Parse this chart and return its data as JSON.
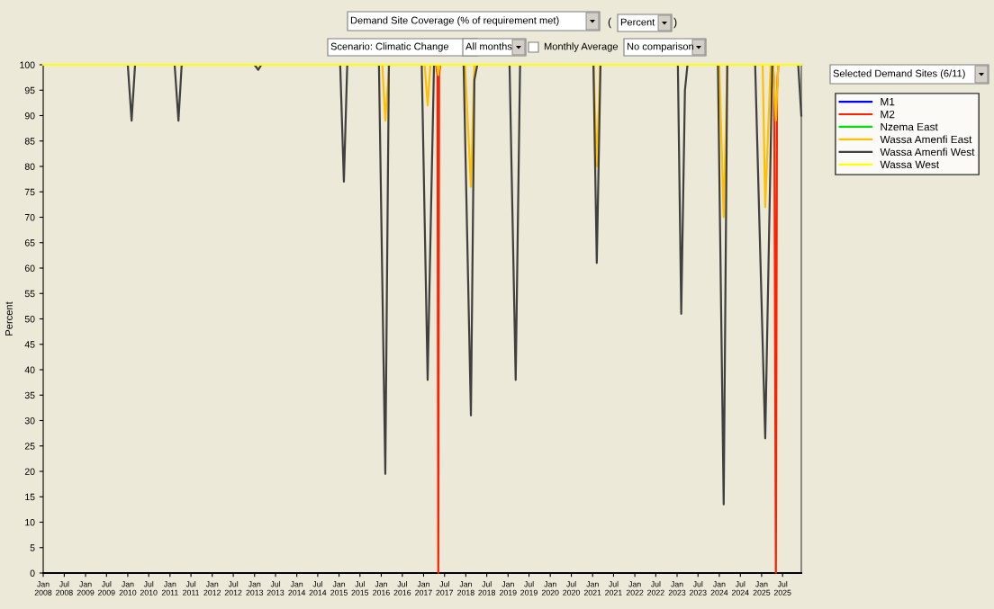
{
  "chart_data": {
    "type": "line",
    "title": "Demand Site Coverage (% of requirement met)",
    "ylabel": "Percent",
    "annotations": [
      "Percent",
      "Scenario: Climatic Change",
      "All months",
      "Monthly Average",
      "No comparison",
      "Selected Demand Sites (6/11)",
      "(",
      ")"
    ],
    "xlim": [
      "2008-01-01",
      "2025-12-10"
    ],
    "ylim": [
      0,
      100
    ],
    "yticks": [
      0,
      5,
      10,
      15,
      20,
      25,
      30,
      35,
      40,
      45,
      50,
      55,
      60,
      65,
      70,
      75,
      80,
      85,
      90,
      95,
      100
    ],
    "xticks": [
      {
        "value": "2008-01-01",
        "label": "Jan\n2008"
      },
      {
        "value": "2008-07-01",
        "label": "Jul\n2008"
      },
      {
        "value": "2009-01-01",
        "label": "Jan\n2009"
      },
      {
        "value": "2009-07-01",
        "label": "Jul\n2009"
      },
      {
        "value": "2010-01-01",
        "label": "Jan\n2010"
      },
      {
        "value": "2010-07-01",
        "label": "Jul\n2010"
      },
      {
        "value": "2011-01-01",
        "label": "Jan\n2011"
      },
      {
        "value": "2011-07-01",
        "label": "Jul\n2011"
      },
      {
        "value": "2012-01-01",
        "label": "Jan\n2012"
      },
      {
        "value": "2012-07-01",
        "label": "Jul\n2012"
      },
      {
        "value": "2013-01-01",
        "label": "Jan\n2013"
      },
      {
        "value": "2013-07-01",
        "label": "Jul\n2013"
      },
      {
        "value": "2014-01-01",
        "label": "Jan\n2014"
      },
      {
        "value": "2014-07-01",
        "label": "Jul\n2014"
      },
      {
        "value": "2015-01-01",
        "label": "Jan\n2015"
      },
      {
        "value": "2015-07-01",
        "label": "Jul\n2015"
      },
      {
        "value": "2016-01-01",
        "label": "Jan\n2016"
      },
      {
        "value": "2016-07-01",
        "label": "Jul\n2016"
      },
      {
        "value": "2017-01-01",
        "label": "Jan\n2017"
      },
      {
        "value": "2017-07-01",
        "label": "Jul\n2017"
      },
      {
        "value": "2018-01-01",
        "label": "Jan\n2018"
      },
      {
        "value": "2018-07-01",
        "label": "Jul\n2018"
      },
      {
        "value": "2019-01-01",
        "label": "Jan\n2019"
      },
      {
        "value": "2019-07-01",
        "label": "Jul\n2019"
      },
      {
        "value": "2020-01-01",
        "label": "Jan\n2020"
      },
      {
        "value": "2020-07-01",
        "label": "Jul\n2020"
      },
      {
        "value": "2021-01-01",
        "label": "Jan\n2021"
      },
      {
        "value": "2021-07-01",
        "label": "Jul\n2021"
      },
      {
        "value": "2022-01-01",
        "label": "Jan\n2022"
      },
      {
        "value": "2022-07-01",
        "label": "Jul\n2022"
      },
      {
        "value": "2023-01-01",
        "label": "Jan\n2023"
      },
      {
        "value": "2023-07-01",
        "label": "Jul\n2023"
      },
      {
        "value": "2024-01-01",
        "label": "Jan\n2024"
      },
      {
        "value": "2024-07-01",
        "label": "Jul\n2024"
      },
      {
        "value": "2025-01-01",
        "label": "Jan\n2025"
      },
      {
        "value": "2025-07-01",
        "label": "Jul\n2025"
      }
    ],
    "grid": false,
    "legend": "top right",
    "marker": "none",
    "line_style": "solid",
    "series": [
      {
        "name": "M1",
        "color": "#0000ff"
      },
      {
        "name": "M2",
        "color": "#ff2000",
        "x": [
          "2008-01-01",
          "2017-04-20",
          "2017-05-01",
          "2017-05-08",
          "2017-05-15",
          "2017-05-25",
          "2025-04-10",
          "2025-04-20",
          "2025-05-04",
          "2025-05-14",
          "2025-05-25",
          "2025-12-10"
        ],
        "values": [
          100,
          100,
          98,
          0,
          98,
          100,
          100,
          95,
          0,
          95,
          100,
          100
        ]
      },
      {
        "name": "Nzema East",
        "color": "#00e000"
      },
      {
        "name": "Wassa Amenfi East",
        "color": "#ffc000",
        "x": [
          "2008-01-01",
          "2016-01-10",
          "2016-02-05",
          "2016-03-10",
          "2017-01-10",
          "2017-02-05",
          "2017-03-01",
          "2017-04-25",
          "2017-05-08",
          "2017-05-20",
          "2017-12-25",
          "2018-02-14",
          "2018-03-16",
          "2021-01-10",
          "2021-02-06",
          "2021-03-08",
          "2024-01-01",
          "2024-02-08",
          "2024-03-10",
          "2025-01-10",
          "2025-02-01",
          "2025-03-20",
          "2025-04-10",
          "2025-05-04",
          "2025-05-25",
          "2025-12-10"
        ],
        "values": [
          100,
          100,
          89,
          100,
          100,
          92,
          100,
          100,
          98,
          100,
          100,
          76,
          100,
          100,
          80,
          100,
          100,
          70,
          100,
          100,
          72,
          100,
          100,
          89,
          100,
          100
        ]
      },
      {
        "name": "Wassa Amenfi West",
        "color": "#404040",
        "x": [
          "2008-01-01",
          "2010-01-01",
          "2010-02-03",
          "2010-03-05",
          "2011-02-10",
          "2011-03-15",
          "2011-04-12",
          "2013-01-01",
          "2013-02-01",
          "2013-03-01",
          "2015-01-11",
          "2015-02-12",
          "2015-03-13",
          "2015-12-12",
          "2016-02-05",
          "2016-03-07",
          "2016-12-16",
          "2017-02-05",
          "2017-03-05",
          "2017-04-01",
          "2017-12-13",
          "2018-02-14",
          "2018-03-16",
          "2018-04-10",
          "2019-01-14",
          "2019-03-08",
          "2019-04-15",
          "2021-01-08",
          "2021-02-06",
          "2021-03-10",
          "2023-01-08",
          "2023-02-06",
          "2023-03-10",
          "2023-04-01",
          "2023-12-20",
          "2024-02-08",
          "2024-03-10",
          "2024-11-06",
          "2025-02-01",
          "2025-04-03",
          "2025-11-13",
          "2025-12-10"
        ],
        "values": [
          100,
          100,
          89,
          100,
          100,
          89,
          100,
          100,
          99,
          100,
          100,
          77,
          100,
          100,
          19.5,
          100,
          100,
          38,
          70,
          100,
          100,
          31,
          97,
          100,
          100,
          38,
          100,
          100,
          61,
          100,
          100,
          51,
          95,
          100,
          100,
          13.5,
          100,
          100,
          26.5,
          100,
          100,
          90
        ]
      },
      {
        "name": "Wassa West",
        "color": "#ffff00",
        "x": [
          "2008-01-01",
          "2025-12-10"
        ],
        "values": [
          100,
          100
        ]
      }
    ]
  }
}
